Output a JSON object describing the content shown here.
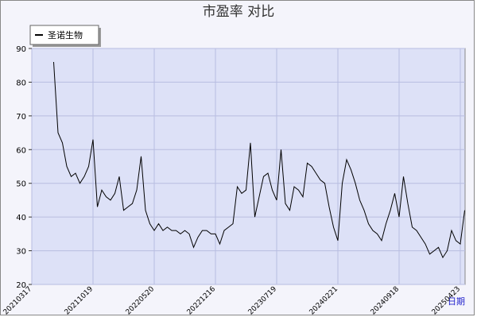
{
  "chart_data": {
    "type": "line",
    "title": "市盈率  对比",
    "x_label": "日期",
    "categories": [
      "20210317",
      null,
      null,
      null,
      null,
      null,
      null,
      null,
      null,
      null,
      null,
      null,
      null,
      null,
      "20211019",
      null,
      null,
      null,
      null,
      null,
      null,
      null,
      null,
      null,
      null,
      null,
      null,
      null,
      "20220520",
      null,
      null,
      null,
      null,
      null,
      null,
      null,
      null,
      null,
      null,
      null,
      null,
      null,
      "20221216",
      null,
      null,
      null,
      null,
      null,
      null,
      null,
      null,
      null,
      null,
      null,
      null,
      null,
      "20230719",
      null,
      null,
      null,
      null,
      null,
      null,
      null,
      null,
      null,
      null,
      null,
      null,
      null,
      "20240221",
      null,
      null,
      null,
      null,
      null,
      null,
      null,
      null,
      null,
      null,
      null,
      null,
      null,
      "20240918",
      null,
      null,
      null,
      null,
      null,
      null,
      null,
      null,
      null,
      null,
      null,
      null,
      null,
      "20250423",
      null
    ],
    "series": [
      {
        "name": "圣诺生物",
        "color": "#000000",
        "values": [
          null,
          null,
          null,
          null,
          null,
          86,
          65,
          62,
          55,
          52,
          53,
          50,
          52,
          55,
          63,
          43,
          48,
          46,
          45,
          47,
          52,
          42,
          43,
          44,
          48,
          58,
          42,
          38,
          36,
          38,
          36,
          37,
          36,
          36,
          35,
          36,
          35,
          31,
          34,
          36,
          36,
          35,
          35,
          32,
          36,
          37,
          38,
          49,
          47,
          48,
          62,
          40,
          46,
          52,
          53,
          48,
          45,
          60,
          44,
          42,
          49,
          48,
          46,
          56,
          55,
          53,
          51,
          50,
          43,
          37,
          33,
          50,
          57,
          54,
          50,
          45,
          42,
          38,
          36,
          35,
          33,
          38,
          42,
          47,
          40,
          52,
          44,
          37,
          36,
          34,
          32,
          29,
          30,
          31,
          28,
          30,
          36,
          33,
          32,
          42
        ]
      }
    ],
    "ylim": [
      20,
      90
    ],
    "yticks": [
      20,
      30,
      40,
      50,
      60,
      70,
      80,
      90
    ],
    "grid": true,
    "legend": "top-left"
  }
}
